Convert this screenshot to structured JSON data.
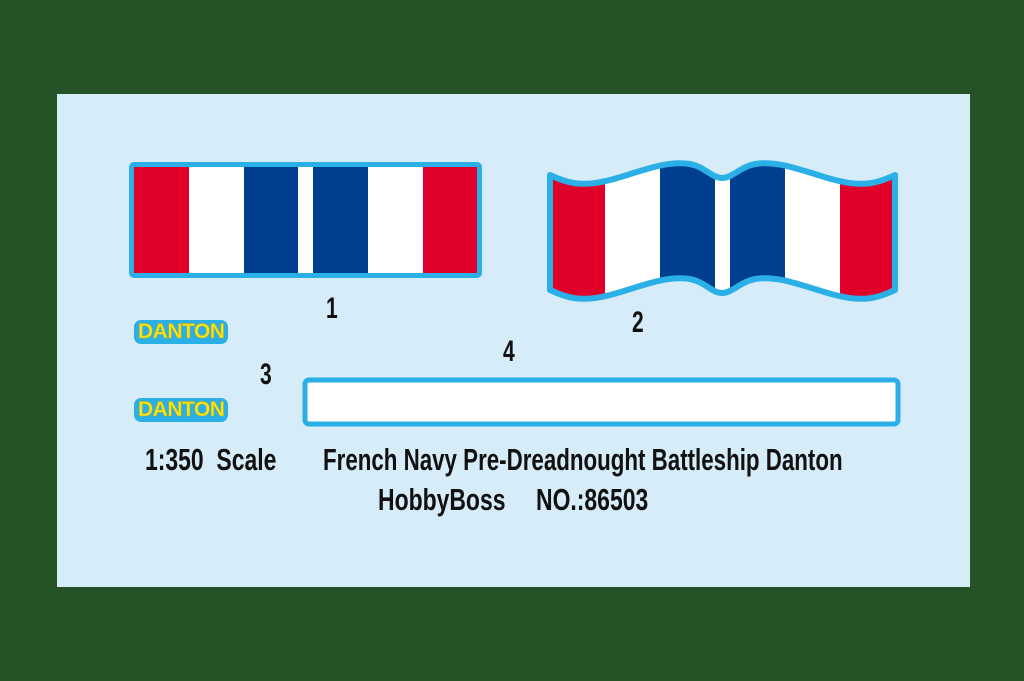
{
  "decal_sheet": {
    "colors": {
      "background": "#265228",
      "sheet": "#d6ecf8",
      "outline": "#2ab0e6",
      "red": "#e0002a",
      "white": "#ffffff",
      "blue": "#003f8f",
      "name_text": "#f4e41c"
    },
    "labels": {
      "one": "1",
      "two": "2",
      "three": "3",
      "four": "4"
    },
    "names": [
      "DANTON",
      "DANTON"
    ],
    "caption": {
      "scale": "1:350  Scale",
      "title": "French Navy Pre-Dreadnought Battleship Danton",
      "brand": "HobbyBoss",
      "number": "NO.:86503"
    }
  }
}
